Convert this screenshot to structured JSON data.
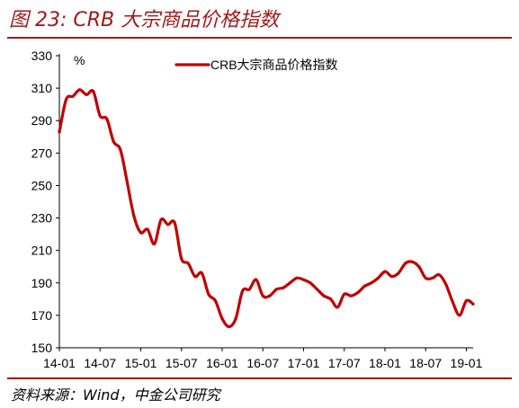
{
  "figure": {
    "title": "图 23: CRB 大宗商品价格指数",
    "source": "资料来源：Wind，中金公司研究"
  },
  "colors": {
    "accent": "#a01a1a",
    "series": "#c00000"
  },
  "chart_data": {
    "type": "line",
    "unit": "%",
    "legend": "top-center",
    "grid": false,
    "ylim": [
      150,
      330
    ],
    "yticks": [
      150,
      170,
      190,
      210,
      230,
      250,
      270,
      290,
      310,
      330
    ],
    "xticks": [
      "14-01",
      "14-07",
      "15-01",
      "15-07",
      "16-01",
      "16-07",
      "17-01",
      "17-07",
      "18-01",
      "18-07",
      "19-01"
    ],
    "x": [
      "14-01",
      "14-02",
      "14-03",
      "14-04",
      "14-05",
      "14-06",
      "14-07",
      "14-08",
      "14-09",
      "14-10",
      "14-11",
      "14-12",
      "15-01",
      "15-02",
      "15-03",
      "15-04",
      "15-05",
      "15-06",
      "15-07",
      "15-08",
      "15-09",
      "15-10",
      "15-11",
      "15-12",
      "16-01",
      "16-02",
      "16-03",
      "16-04",
      "16-05",
      "16-06",
      "16-07",
      "16-08",
      "16-09",
      "16-10",
      "16-11",
      "16-12",
      "17-01",
      "17-02",
      "17-03",
      "17-04",
      "17-05",
      "17-06",
      "17-07",
      "17-08",
      "17-09",
      "17-10",
      "17-11",
      "17-12",
      "18-01",
      "18-02",
      "18-03",
      "18-04",
      "18-05",
      "18-06",
      "18-07",
      "18-08",
      "18-09",
      "18-10",
      "18-11",
      "18-12",
      "19-01",
      "19-02"
    ],
    "series": [
      {
        "name": "CRB大宗商品价格指数",
        "values": [
          283,
          303,
          305,
          309,
          306,
          308,
          293,
          291,
          277,
          272,
          252,
          231,
          221,
          223,
          214,
          229,
          226,
          227,
          205,
          202,
          194,
          196,
          183,
          179,
          168,
          163,
          168,
          185,
          186,
          192,
          182,
          182,
          186,
          187,
          190,
          193,
          192,
          190,
          186,
          182,
          180,
          175,
          183,
          182,
          184,
          188,
          190,
          193,
          197,
          194,
          196,
          202,
          203,
          200,
          193,
          193,
          195,
          189,
          178,
          170,
          179,
          177
        ]
      }
    ]
  }
}
